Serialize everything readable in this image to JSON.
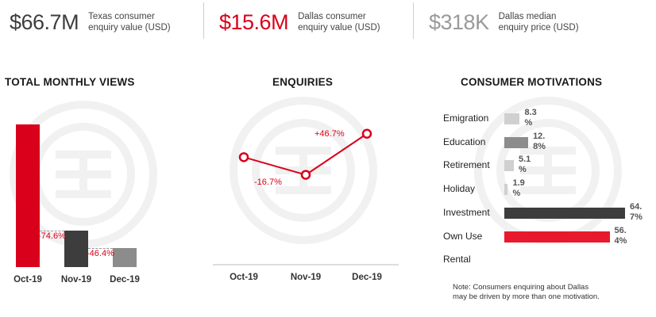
{
  "kpis": [
    {
      "value": "$66.7M",
      "label": "Texas consumer\nenquiry value (USD)",
      "color": "#3d3d3d"
    },
    {
      "value": "$15.6M",
      "label": "Dallas consumer\nenquiry value (USD)",
      "color": "#d9001b"
    },
    {
      "value": "$318K",
      "label": "Dallas median\nenquiry price (USD)",
      "color": "#9a9a9a"
    }
  ],
  "views": {
    "title": "TOTAL MONTHLY VIEWS",
    "months": [
      "Oct-19",
      "Nov-19",
      "Dec-19"
    ],
    "values": [
      100,
      25.4,
      13.6
    ],
    "deltas": [
      "-74.6%",
      "-46.4%"
    ],
    "colors": [
      "#d9001b",
      "#3d3d3d",
      "#8c8c8c"
    ]
  },
  "enquiries": {
    "title": "ENQUIRIES",
    "months": [
      "Oct-19",
      "Nov-19",
      "Dec-19"
    ],
    "values": [
      100,
      83.3,
      122.2
    ],
    "deltas": [
      "-16.7%",
      "+46.7%"
    ],
    "line_color": "#d9001b"
  },
  "motivations": {
    "title": "CONSUMER MOTIVATIONS",
    "items": [
      {
        "label": "Emigration",
        "value": 8.3,
        "text": "8.3\n%",
        "color": "#d0d0d0"
      },
      {
        "label": "Education",
        "value": 12.8,
        "text": "12.\n8%",
        "color": "#8c8c8c"
      },
      {
        "label": "Retirement",
        "value": 5.1,
        "text": "5.1\n%",
        "color": "#d0d0d0"
      },
      {
        "label": "Holiday",
        "value": 1.9,
        "text": "1.9\n%",
        "color": "#d0d0d0"
      },
      {
        "label": "Investment",
        "value": 64.7,
        "text": "64.\n7%",
        "color": "#3d3d3d"
      },
      {
        "label": "Own Use",
        "value": 56.4,
        "text": "56.\n4%",
        "color": "#e8192c"
      },
      {
        "label": "Rental",
        "value": 0,
        "text": "",
        "color": "#d0d0d0"
      }
    ],
    "note": "Note: Consumers enquiring about Dallas\nmay be driven by more than one motivation."
  }
}
